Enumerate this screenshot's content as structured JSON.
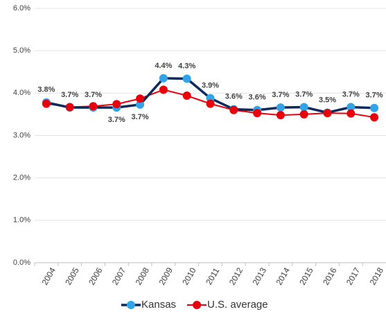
{
  "chart_data": {
    "type": "line",
    "categories": [
      "2004",
      "2005",
      "2006",
      "2007",
      "2008",
      "2009",
      "2010",
      "2011",
      "2012",
      "2013",
      "2014",
      "2015",
      "2016",
      "2017",
      "2018"
    ],
    "series": [
      {
        "name": "Kansas",
        "color": "#0d2a5c",
        "marker_color": "#33a3e8",
        "values": [
          3.78,
          3.66,
          3.66,
          3.66,
          3.73,
          4.35,
          4.34,
          3.88,
          3.62,
          3.6,
          3.66,
          3.67,
          3.54,
          3.67,
          3.65
        ],
        "value_labels": [
          "3.8%",
          "3.7%",
          "3.7%",
          "3.7%",
          "3.7%",
          "4.4%",
          "4.3%",
          "3.9%",
          "3.6%",
          "3.6%",
          "3.7%",
          "3.7%",
          "3.5%",
          "3.7%",
          "3.7%"
        ]
      },
      {
        "name": "U.S. average",
        "color": "#e8000b",
        "marker_color": "#e8000b",
        "values": [
          3.75,
          3.67,
          3.69,
          3.74,
          3.87,
          4.08,
          3.94,
          3.75,
          3.6,
          3.53,
          3.48,
          3.5,
          3.53,
          3.52,
          3.43
        ]
      }
    ],
    "ylim": [
      0,
      6
    ],
    "yticks": [
      {
        "value": 0,
        "label": "0.0%"
      },
      {
        "value": 1,
        "label": "1.0%"
      },
      {
        "value": 2,
        "label": "2.0%"
      },
      {
        "value": 3,
        "label": "3.0%"
      },
      {
        "value": 4,
        "label": "4.0%"
      },
      {
        "value": 5,
        "label": "5.0%"
      },
      {
        "value": 6,
        "label": "6.0%"
      }
    ],
    "grid": true
  }
}
